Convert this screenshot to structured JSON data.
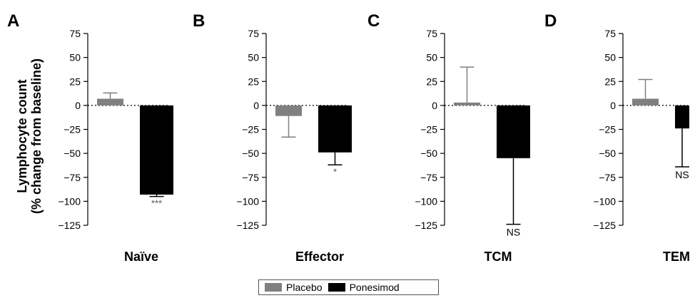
{
  "ylabel": {
    "line1": "Lymphocyte count",
    "line2": "(% change from baseline)"
  },
  "colors": {
    "placebo": "#808080",
    "ponesimod": "#000000",
    "axis": "#000000",
    "zero_line": "#000000"
  },
  "legend": [
    {
      "label": "Placebo",
      "color": "#808080"
    },
    {
      "label": "Ponesimod",
      "color": "#000000"
    }
  ],
  "chart_data": [
    {
      "type": "bar",
      "panel": "A",
      "xlabel": "Naïve",
      "ylim": [
        -125,
        75
      ],
      "yticks": [
        "75",
        "50",
        "25",
        "0",
        "−25",
        "−50",
        "−75",
        "−100",
        "−125"
      ],
      "yticks_values": [
        75,
        50,
        25,
        0,
        -25,
        -50,
        -75,
        -100,
        -125
      ],
      "series": [
        {
          "name": "Placebo",
          "value": 7,
          "error": 6,
          "annotation": ""
        },
        {
          "name": "Ponesimod",
          "value": -93,
          "error": 2,
          "annotation": "***"
        }
      ]
    },
    {
      "type": "bar",
      "panel": "B",
      "xlabel": "Effector",
      "ylim": [
        -125,
        75
      ],
      "yticks": [
        "75",
        "50",
        "25",
        "0",
        "−25",
        "−50",
        "−75",
        "−100",
        "−125"
      ],
      "yticks_values": [
        75,
        50,
        25,
        0,
        -25,
        -50,
        -75,
        -100,
        -125
      ],
      "series": [
        {
          "name": "Placebo",
          "value": -11,
          "error": 22,
          "annotation": ""
        },
        {
          "name": "Ponesimod",
          "value": -49,
          "error": 13,
          "annotation": "*"
        }
      ]
    },
    {
      "type": "bar",
      "panel": "C",
      "xlabel": "TCM",
      "ylim": [
        -125,
        75
      ],
      "yticks": [
        "75",
        "50",
        "25",
        "0",
        "−25",
        "−50",
        "−75",
        "−100",
        "−125"
      ],
      "yticks_values": [
        75,
        50,
        25,
        0,
        -25,
        -50,
        -75,
        -100,
        -125
      ],
      "series": [
        {
          "name": "Placebo",
          "value": 3,
          "error": 37,
          "annotation": ""
        },
        {
          "name": "Ponesimod",
          "value": -55,
          "error": 69,
          "annotation": "NS"
        }
      ]
    },
    {
      "type": "bar",
      "panel": "D",
      "xlabel": "TEM",
      "ylim": [
        -125,
        75
      ],
      "yticks": [
        "75",
        "50",
        "25",
        "0",
        "−25",
        "−50",
        "−75",
        "−100",
        "−125"
      ],
      "yticks_values": [
        75,
        50,
        25,
        0,
        -25,
        -50,
        -75,
        -100,
        -125
      ],
      "series": [
        {
          "name": "Placebo",
          "value": 7,
          "error": 20,
          "annotation": ""
        },
        {
          "name": "Ponesimod",
          "value": -24,
          "error": 40,
          "annotation": "NS"
        }
      ]
    }
  ]
}
